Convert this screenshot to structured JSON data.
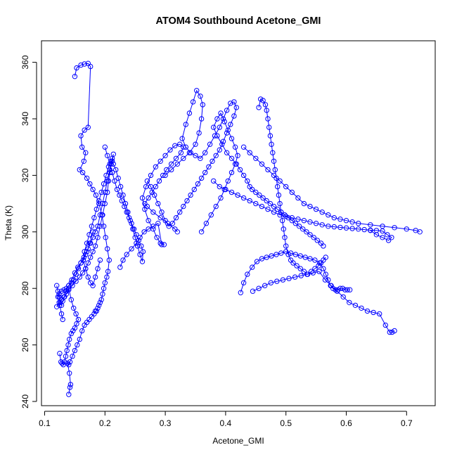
{
  "chart_data": {
    "type": "scatter",
    "title": "ATOM4 Southbound Acetone_GMI",
    "xlabel": "Acetone_GMI",
    "ylabel": "Theta (K)",
    "xlim": [
      0.1,
      0.75
    ],
    "ylim": [
      240,
      365
    ],
    "x_ticks": [
      "0.1",
      "0.2",
      "0.3",
      "0.4",
      "0.5",
      "0.6",
      "0.7"
    ],
    "y_ticks": [
      "240",
      "260",
      "280",
      "300",
      "320",
      "340",
      "360"
    ],
    "grid": false,
    "legend": "none",
    "marker": "open-circle",
    "connect_points": true,
    "color": "#0000ff",
    "series": [
      {
        "x": [
          0.15,
          0.153,
          0.16,
          0.166,
          0.172,
          0.176,
          0.172,
          0.166,
          0.16,
          0.162,
          0.168,
          0.165,
          0.158,
          0.163,
          0.17,
          0.175,
          0.18,
          0.185,
          0.19,
          0.195,
          0.198,
          0.201,
          0.204,
          0.207,
          0.205,
          0.203,
          0.2,
          0.198,
          0.196,
          0.194,
          0.192,
          0.19,
          0.188,
          0.186,
          0.184,
          0.182,
          0.178,
          0.174,
          0.17,
          0.166,
          0.162,
          0.158,
          0.154,
          0.15,
          0.146,
          0.142,
          0.14,
          0.138,
          0.141,
          0.143,
          0.142,
          0.14
        ],
        "y": [
          355,
          358,
          359,
          359.4,
          359.6,
          358.5,
          337,
          336,
          334,
          330,
          328,
          325,
          322,
          321,
          319,
          317,
          315,
          313,
          310,
          306,
          302,
          298,
          294,
          290,
          286,
          284,
          282,
          280,
          278,
          276,
          275,
          274,
          273,
          272,
          272,
          271,
          270,
          269,
          268,
          267,
          265,
          262,
          260,
          258,
          256,
          254,
          253,
          253.5,
          250,
          246,
          245,
          242.5
        ]
      },
      {
        "x": [
          0.12,
          0.124,
          0.128,
          0.132,
          0.136,
          0.14,
          0.146,
          0.152,
          0.158,
          0.163,
          0.168,
          0.172,
          0.176,
          0.18,
          0.184,
          0.188,
          0.192,
          0.196,
          0.2,
          0.204,
          0.206,
          0.208,
          0.21,
          0.212,
          0.214,
          0.212,
          0.208,
          0.204,
          0.2,
          0.196,
          0.192,
          0.188,
          0.184,
          0.18,
          0.176,
          0.172,
          0.168,
          0.164,
          0.16,
          0.156,
          0.152,
          0.148,
          0.144,
          0.14,
          0.136,
          0.132,
          0.128,
          0.124,
          0.122,
          0.125,
          0.128,
          0.13
        ],
        "y": [
          273.5,
          275,
          276,
          277,
          278,
          279.5,
          281,
          282.5,
          284,
          285.5,
          287,
          289,
          291,
          293,
          295,
          298,
          302,
          306,
          310,
          314,
          318,
          321,
          324,
          326,
          327.5,
          325,
          322,
          318,
          314,
          310,
          306,
          302,
          300,
          298,
          296,
          294,
          292,
          290,
          289,
          287,
          285,
          283,
          282,
          281,
          280,
          279.5,
          279,
          278,
          277,
          274,
          271,
          269
        ]
      },
      {
        "x": [
          0.2,
          0.204,
          0.208,
          0.212,
          0.216,
          0.22,
          0.224,
          0.228,
          0.232,
          0.236,
          0.24,
          0.244,
          0.248,
          0.252,
          0.256,
          0.26,
          0.263,
          0.262,
          0.258,
          0.254,
          0.25,
          0.246,
          0.242,
          0.238,
          0.234,
          0.23,
          0.226,
          0.222,
          0.218,
          0.214,
          0.21,
          0.206,
          0.202,
          0.198,
          0.194,
          0.19,
          0.186,
          0.182,
          0.178,
          0.174,
          0.17,
          0.166,
          0.164,
          0.168,
          0.172,
          0.176,
          0.18,
          0.184,
          0.188,
          0.192
        ],
        "y": [
          330,
          327,
          324,
          321,
          318,
          315,
          313,
          311,
          309,
          307,
          305,
          303,
          301,
          299,
          297,
          295,
          293,
          289.5,
          292,
          295,
          298,
          301,
          304,
          307,
          310,
          313,
          316,
          319,
          322,
          324,
          325,
          323,
          320,
          317,
          314,
          311,
          308,
          305,
          302,
          299,
          296,
          293,
          290,
          287,
          284,
          282,
          281,
          284,
          287,
          290
        ]
      },
      {
        "x": [
          0.225,
          0.23,
          0.236,
          0.244,
          0.252,
          0.258,
          0.265,
          0.272,
          0.28,
          0.288,
          0.294,
          0.298,
          0.292,
          0.286,
          0.28,
          0.272,
          0.266,
          0.262,
          0.268,
          0.276,
          0.284,
          0.292,
          0.3,
          0.308,
          0.316,
          0.324,
          0.33,
          0.326,
          0.318,
          0.31,
          0.302,
          0.296,
          0.29,
          0.284,
          0.278,
          0.272,
          0.266,
          0.27,
          0.28,
          0.292,
          0.304,
          0.316,
          0.32
        ],
        "y": [
          287.5,
          290,
          292,
          294,
          296,
          298,
          300,
          301,
          302,
          303,
          295.5,
          295.5,
          296,
          298,
          301,
          304,
          308,
          312,
          316,
          320,
          323,
          325,
          327,
          329,
          330.5,
          331,
          330,
          328,
          326,
          324,
          322,
          320,
          318,
          316,
          314,
          312,
          310,
          309,
          307,
          305,
          303,
          301,
          300
        ]
      },
      {
        "x": [
          0.3,
          0.31,
          0.32,
          0.33,
          0.34,
          0.35,
          0.356,
          0.36,
          0.362,
          0.358,
          0.352,
          0.346,
          0.34,
          0.334,
          0.328,
          0.334,
          0.342,
          0.35,
          0.358,
          0.366,
          0.374,
          0.382,
          0.39,
          0.396,
          0.402,
          0.408,
          0.414,
          0.418,
          0.414,
          0.408,
          0.402,
          0.396,
          0.39,
          0.384,
          0.378,
          0.372,
          0.366,
          0.36,
          0.354,
          0.348,
          0.342,
          0.336,
          0.33,
          0.324,
          0.318,
          0.312,
          0.306,
          0.3,
          0.294,
          0.288,
          0.282,
          0.276,
          0.27
        ],
        "y": [
          320,
          322,
          324,
          326,
          328,
          331,
          335,
          340,
          345,
          348,
          350,
          346,
          342,
          338,
          333,
          330,
          328,
          327,
          326,
          328,
          331,
          334,
          337,
          340,
          343,
          345.5,
          346,
          344,
          341,
          338,
          335,
          332,
          329,
          327,
          325,
          323,
          321,
          319,
          317,
          315,
          313,
          311,
          309,
          307,
          305,
          303,
          302,
          304,
          307,
          310,
          313,
          316,
          318
        ]
      },
      {
        "x": [
          0.36,
          0.368,
          0.376,
          0.384,
          0.392,
          0.398,
          0.404,
          0.41,
          0.416,
          0.42,
          0.416,
          0.41,
          0.404,
          0.398,
          0.392,
          0.386,
          0.38,
          0.386,
          0.394,
          0.402,
          0.41,
          0.418,
          0.424,
          0.43,
          0.436,
          0.44,
          0.444,
          0.45,
          0.456,
          0.462,
          0.468,
          0.474,
          0.48,
          0.486,
          0.492,
          0.498,
          0.504,
          0.51,
          0.516,
          0.522,
          0.528,
          0.534,
          0.54,
          0.546,
          0.552,
          0.558,
          0.562
        ],
        "y": [
          300,
          303,
          306,
          309,
          312,
          315,
          318,
          321,
          324,
          327,
          330,
          333,
          336,
          339,
          342,
          340,
          337,
          334,
          331,
          328,
          326,
          324,
          322,
          320,
          318,
          316,
          315,
          314,
          313,
          312,
          311,
          310,
          309,
          308,
          307,
          306,
          305,
          304,
          303,
          302,
          301,
          300,
          299,
          298,
          297,
          296,
          295
        ]
      },
      {
        "x": [
          0.455,
          0.458,
          0.462,
          0.466,
          0.468,
          0.47,
          0.472,
          0.474,
          0.476,
          0.478,
          0.48,
          0.482,
          0.484,
          0.486,
          0.488,
          0.49,
          0.492,
          0.494,
          0.496,
          0.498,
          0.5,
          0.504,
          0.508,
          0.512,
          0.518,
          0.524,
          0.53,
          0.536,
          0.542,
          0.548,
          0.554,
          0.558,
          0.562,
          0.566
        ],
        "y": [
          344,
          347,
          346.5,
          345,
          343,
          340,
          337,
          334,
          331,
          328,
          325,
          322,
          319,
          316,
          313,
          310,
          307,
          304,
          301,
          298,
          295,
          292,
          290,
          289,
          288,
          287,
          286,
          285,
          286,
          287,
          288,
          289,
          290,
          291
        ]
      },
      {
        "x": [
          0.38,
          0.39,
          0.4,
          0.41,
          0.42,
          0.43,
          0.44,
          0.45,
          0.46,
          0.47,
          0.48,
          0.49,
          0.5,
          0.51,
          0.52,
          0.53,
          0.54,
          0.55,
          0.56,
          0.57,
          0.58,
          0.59,
          0.6,
          0.61,
          0.62,
          0.63,
          0.64,
          0.65,
          0.66,
          0.668,
          0.675,
          0.67,
          0.66,
          0.65,
          0.64
        ],
        "y": [
          318,
          316,
          315,
          314,
          313,
          312,
          311,
          310,
          309,
          308,
          307,
          306,
          305.5,
          305,
          304.5,
          304,
          303.5,
          303,
          302.5,
          302,
          301.8,
          301.6,
          301.4,
          301.2,
          301,
          300.8,
          300.6,
          300.5,
          300.3,
          299,
          298,
          297,
          298,
          299,
          300.5
        ]
      },
      {
        "x": [
          0.43,
          0.44,
          0.45,
          0.46,
          0.47,
          0.48,
          0.49,
          0.5,
          0.51,
          0.52,
          0.53,
          0.54,
          0.55,
          0.56,
          0.57,
          0.58,
          0.59,
          0.6,
          0.61,
          0.62,
          0.64,
          0.66,
          0.68,
          0.7,
          0.715,
          0.722
        ],
        "y": [
          330,
          328,
          326,
          324,
          322,
          320,
          318,
          316,
          314,
          312,
          310,
          309,
          308,
          307,
          306,
          305,
          304.5,
          304,
          303.5,
          303,
          302.5,
          302,
          301.5,
          301,
          300.5,
          300
        ]
      },
      {
        "x": [
          0.425,
          0.43,
          0.436,
          0.444,
          0.452,
          0.46,
          0.468,
          0.476,
          0.484,
          0.492,
          0.5,
          0.508,
          0.516,
          0.524,
          0.532,
          0.54,
          0.548,
          0.556,
          0.562,
          0.566,
          0.57,
          0.574,
          0.578,
          0.582,
          0.586,
          0.59,
          0.594,
          0.598,
          0.602,
          0.606
        ],
        "y": [
          278.5,
          282,
          285,
          287.5,
          289.5,
          290.5,
          291,
          291.5,
          292,
          292.5,
          293,
          292.5,
          292,
          291.5,
          291,
          290.5,
          290,
          289,
          287,
          285,
          283,
          281,
          280,
          279.5,
          279.5,
          280,
          280,
          279.5,
          279.5,
          279.5
        ]
      },
      {
        "x": [
          0.445,
          0.455,
          0.465,
          0.475,
          0.485,
          0.495,
          0.505,
          0.515,
          0.525,
          0.535,
          0.545,
          0.555,
          0.565,
          0.575,
          0.585,
          0.595,
          0.605,
          0.615,
          0.625,
          0.635,
          0.645,
          0.655,
          0.665,
          0.672,
          0.676,
          0.68
        ],
        "y": [
          279,
          280,
          281,
          282,
          282.5,
          283,
          283.5,
          284,
          284.5,
          285,
          285.5,
          286,
          283,
          281,
          279,
          277,
          275,
          274,
          273,
          272,
          271.5,
          271,
          267,
          264.5,
          264.5,
          265
        ]
      },
      {
        "x": [
          0.125,
          0.127,
          0.129,
          0.131,
          0.133,
          0.135,
          0.137,
          0.139,
          0.141,
          0.144,
          0.147,
          0.15,
          0.153,
          0.156,
          0.152,
          0.148,
          0.144,
          0.14
        ],
        "y": [
          257,
          254,
          253.5,
          253,
          254,
          256,
          258,
          260,
          262,
          264,
          265,
          266,
          267.5,
          269,
          271,
          273,
          276,
          280
        ]
      },
      {
        "x": [
          0.12,
          0.122,
          0.124,
          0.126,
          0.128,
          0.13,
          0.133,
          0.136,
          0.14,
          0.145,
          0.15,
          0.155,
          0.16,
          0.165,
          0.17,
          0.175,
          0.18
        ],
        "y": [
          281,
          279,
          277,
          275,
          274,
          275.5,
          277,
          279,
          281,
          283,
          285.5,
          287.5,
          289,
          291,
          293,
          296,
          300
        ]
      }
    ]
  }
}
